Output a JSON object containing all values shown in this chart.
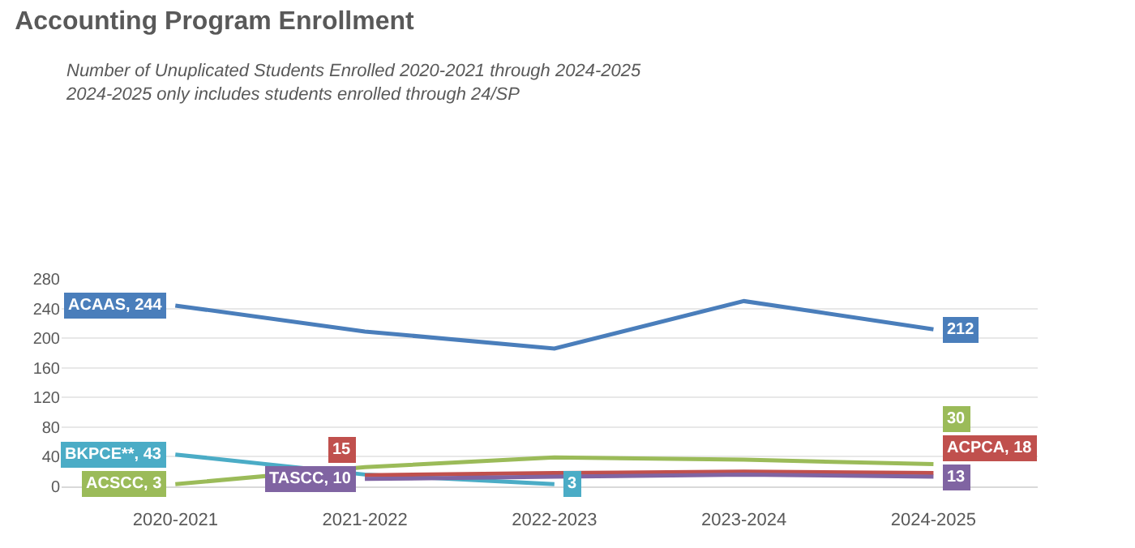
{
  "chart_data": {
    "type": "line",
    "title": "Accounting Program Enrollment",
    "subtitle": "Number of Unuplicated Students Enrolled 2020-2021 through 2024-2025\n2024-2025 only includes students enrolled through 24/SP",
    "categories": [
      "2020-2021",
      "2021-2022",
      "2022-2023",
      "2023-2024",
      "2024-2025"
    ],
    "series": [
      {
        "color": "#4a7ebb",
        "values": [
          244,
          209,
          186,
          250,
          212
        ],
        "value_labels": [
          "ACAAS, 244",
          null,
          null,
          null,
          "212"
        ]
      },
      {
        "color": "#4bacc6",
        "values": [
          43,
          16,
          3,
          null,
          null
        ],
        "value_labels": [
          "BKPCE**, 43",
          null,
          "3",
          null,
          null
        ]
      },
      {
        "color": "#9bbb59",
        "values": [
          3,
          26,
          39,
          36,
          30
        ],
        "value_labels": [
          "ACSCC, 3",
          null,
          null,
          null,
          "30"
        ]
      },
      {
        "color": "#c0504d",
        "values": [
          null,
          15,
          18,
          20,
          18
        ],
        "value_labels": [
          null,
          "15",
          null,
          null,
          "ACPCA, 18"
        ]
      },
      {
        "color": "#8064a2",
        "values": [
          null,
          10,
          13,
          16,
          13
        ],
        "value_labels": [
          null,
          "TASCC, 10",
          null,
          null,
          "13"
        ]
      }
    ],
    "ylim": [
      0,
      280
    ],
    "yticks": [
      0,
      40,
      80,
      120,
      160,
      200,
      240,
      280
    ],
    "grid": "y",
    "legend": false,
    "marker": "none",
    "line_style": "solid"
  }
}
